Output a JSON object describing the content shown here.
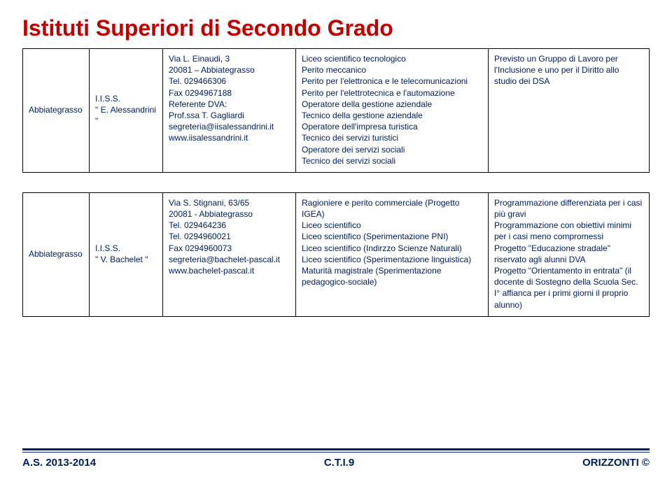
{
  "page_title": "Istituti Superiori di Secondo Grado",
  "rows": [
    {
      "city": "Abbiategrasso",
      "school": "I.I.S.S.\n\" E. Alessandrini \"",
      "contact": "Via L. Einaudi, 3\n20081 – Abbiategrasso\nTel. 029466306\nFax 0294967188\nReferente DVA:\nProf.ssa T. Gagliardi\nsegreteria@iisalessandrini.it\nwww.iisalessandrini.it",
      "courses": "Liceo scientifico tecnologico\nPerito meccanico\nPerito per l'elettronica e le telecomunicazioni\nPerito per l'elettrotecnica e l'automazione\nOperatore della gestione aziendale\nTecnico della gestione aziendale\nOperatore dell'impresa turistica\nTecnico dei servizi turistici\nOperatore dei servizi sociali\nTecnico dei servizi sociali",
      "notes": "Previsto un Gruppo di Lavoro per l'Inclusione  e uno per il Diritto allo studio dei DSA"
    },
    {
      "city": "Abbiategrasso",
      "school": "I.I.S.S.\n\" V. Bachelet \"",
      "contact": "Via S. Stignani, 63/65\n20081 - Abbiategrasso\nTel. 029464236\nTel. 0294960021\nFax 0294960073\nsegreteria@bachelet-pascal.it\nwww.bachelet-pascal.it",
      "courses": "Ragioniere e perito commerciale (Progetto  IGEA)\nLiceo scientifico\nLiceo scientifico (Sperimentazione PNI)\nLiceo scientifico (Indirzzo Scienze Naturali)\nLiceo scientifico (Sperimentazione linguistica)\nMaturità magistrale (Sperimentazione pedagogico-sociale)",
      "notes": "Programmazione differenziata per i casi più gravi\nProgrammazione con obiettivi minimi per i casi meno compromessi\nProgetto \"Educazione stradale\" riservato agli alunni DVA\nProgetto \"Orientamento in entrata\" (il docente di Sostegno della Scuola Sec. I° affianca per i primi giorni il proprio alunno)"
    }
  ],
  "footer": {
    "left": "A.S. 2013-2014",
    "center": "C.T.I.9",
    "right": "ORIZZONTI ©"
  },
  "colors": {
    "title": "#c00000",
    "text": "#002060",
    "border": "#000000",
    "rule": "#002060"
  }
}
